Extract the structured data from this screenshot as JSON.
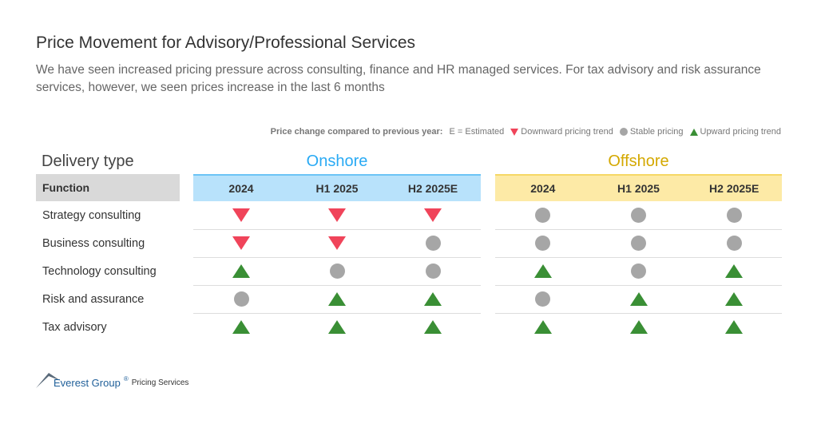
{
  "title": "Price Movement for Advisory/Professional Services",
  "subtitle": "We have seen increased pricing pressure across consulting, finance and HR managed services. For tax advisory and risk assurance services, however, we seen prices increase in the last 6 months",
  "legend": {
    "heading": "Price change compared to previous year:",
    "estimated": "E = Estimated",
    "down": "Downward pricing trend",
    "stable": "Stable pricing",
    "up": "Upward pricing trend"
  },
  "colors": {
    "down": "#f0445a",
    "stable": "#a6a6a6",
    "up": "#3a8f35",
    "onshore": "#29aaf4",
    "offshore": "#d4a800"
  },
  "table": {
    "delivery_label": "Delivery type",
    "function_label": "Function",
    "groups": [
      {
        "name": "Onshore",
        "columns": [
          "2024",
          "H1 2025",
          "H2 2025E"
        ]
      },
      {
        "name": "Offshore",
        "columns": [
          "2024",
          "H1 2025",
          "H2 2025E"
        ]
      }
    ],
    "rows": [
      {
        "function": "Strategy consulting",
        "trends": [
          "down",
          "down",
          "down",
          "stable",
          "stable",
          "stable"
        ]
      },
      {
        "function": "Business consulting",
        "trends": [
          "down",
          "down",
          "stable",
          "stable",
          "stable",
          "stable"
        ]
      },
      {
        "function": "Technology consulting",
        "trends": [
          "up",
          "stable",
          "stable",
          "up",
          "stable",
          "up"
        ]
      },
      {
        "function": "Risk and assurance",
        "trends": [
          "stable",
          "up",
          "up",
          "stable",
          "up",
          "up"
        ]
      },
      {
        "function": "Tax advisory",
        "trends": [
          "up",
          "up",
          "up",
          "up",
          "up",
          "up"
        ]
      }
    ]
  },
  "footer": {
    "brand": "Everest Group",
    "mark": "®",
    "product": "Pricing Services"
  }
}
